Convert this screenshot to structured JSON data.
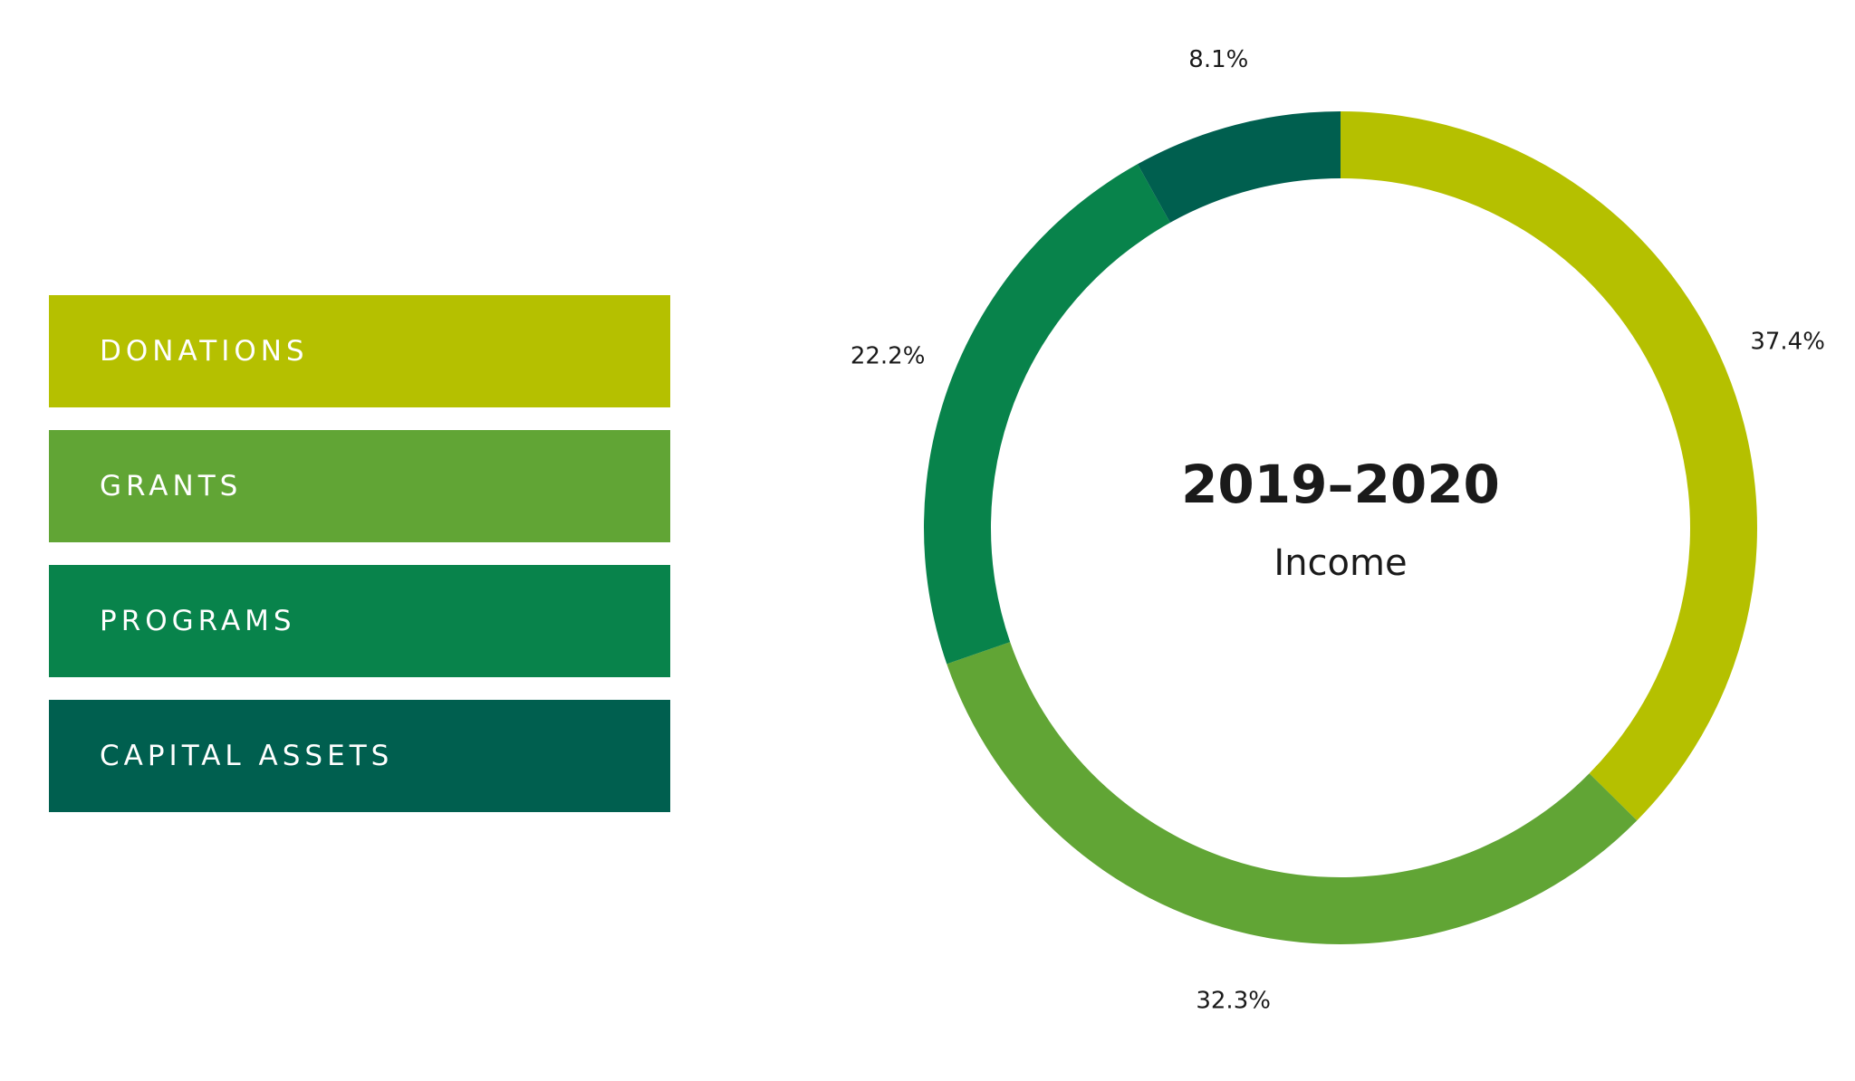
{
  "chart_data": {
    "type": "pie",
    "variant": "donut",
    "title": "2019–2020",
    "subtitle": "Income",
    "categories": [
      "DONATIONS",
      "GRANTS",
      "PROGRAMS",
      "CAPITAL ASSETS"
    ],
    "values": [
      37.4,
      32.3,
      22.2,
      8.1
    ],
    "labels": [
      "37.4%",
      "32.3%",
      "22.2%",
      "8.1%"
    ],
    "colors": [
      "#b5c000",
      "#61a535",
      "#08834b",
      "#005f4f"
    ],
    "legend": "left"
  }
}
